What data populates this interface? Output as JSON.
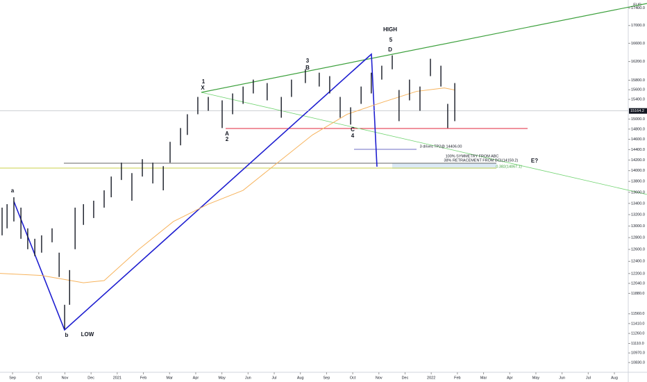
{
  "chart_data": {
    "type": "ohlc",
    "currency": "EUR",
    "log_scale": true,
    "color": "#131722",
    "x": [
      -0.4,
      -0.21,
      0.05,
      0.32,
      0.58,
      0.85,
      1.11,
      1.51,
      1.78,
      1.99,
      2.18,
      2.39,
      2.71,
      3.1,
      3.5,
      3.77,
      4.16,
      4.56,
      4.96,
      5.36,
      5.76,
      6.02,
      6.42,
      6.68,
      7.08,
      7.48,
      8.01,
      8.41,
      8.81,
      9.2,
      9.73,
      10.27,
      10.66,
      11.19,
      11.72,
      12.12,
      12.52,
      12.92,
      13.32,
      13.71,
      14.11,
      14.51,
      14.77,
      15.17,
      15.57,
      15.97,
      16.37,
      16.63,
      16.9
    ],
    "highs": [
      13324,
      13386,
      13510,
      13324,
      12960,
      12780,
      12839,
      12960,
      12545,
      11700,
      12256,
      13324,
      13386,
      13448,
      13636,
      13890,
      14150,
      13954,
      14216,
      14150,
      14084,
      14550,
      14821,
      15097,
      15451,
      15451,
      15380,
      15523,
      15667,
      15813,
      15740,
      15451,
      15813,
      16033,
      15960,
      15887,
      15451,
      15238,
      15667,
      15960,
      16110,
      16335,
      15595,
      15813,
      15667,
      16260,
      16110,
      15308,
      15740
    ],
    "lows": [
      12839,
      12960,
      13080,
      12780,
      12603,
      12487,
      12545,
      12720,
      12144,
      11330,
      11700,
      12603,
      13020,
      13140,
      13324,
      13510,
      13826,
      13448,
      13890,
      13762,
      13636,
      14150,
      14482,
      14685,
      15097,
      15168,
      14821,
      15097,
      15308,
      15523,
      15380,
      15027,
      15451,
      15740,
      15667,
      15523,
      15027,
      14890,
      15308,
      15523,
      15813,
      16033,
      14958,
      15380,
      15168,
      15887,
      15667,
      14821,
      14958
    ],
    "ma_line": {
      "color": "#f7b35c",
      "x": [
        -0.48,
        1.11,
        2.71,
        3.5,
        4.83,
        6.15,
        7.48,
        8.81,
        10.13,
        11.46,
        12.79,
        14.11,
        15.44,
        16.5,
        16.9
      ],
      "values": [
        12202,
        12168,
        12050,
        12085,
        12603,
        13080,
        13386,
        13636,
        14150,
        14685,
        15097,
        15336,
        15566,
        15638,
        15595
      ]
    },
    "xlim": [
      -0.48,
      23.53
    ],
    "ylim": [
      10690,
      17590
    ],
    "xticks": [
      {
        "value": 0,
        "label": "Sep"
      },
      {
        "value": 1,
        "label": "Oct"
      },
      {
        "value": 2,
        "label": "Nov"
      },
      {
        "value": 3,
        "label": "Dec"
      },
      {
        "value": 4,
        "label": "2021"
      },
      {
        "value": 5,
        "label": "Feb"
      },
      {
        "value": 6,
        "label": "Mar"
      },
      {
        "value": 7,
        "label": "Apr"
      },
      {
        "value": 8,
        "label": "May"
      },
      {
        "value": 9,
        "label": "Jun"
      },
      {
        "value": 10,
        "label": "Jul"
      },
      {
        "value": 11,
        "label": "Aug"
      },
      {
        "value": 12,
        "label": "Sep"
      },
      {
        "value": 13,
        "label": "Oct"
      },
      {
        "value": 14,
        "label": "Nov"
      },
      {
        "value": 15,
        "label": "Dec"
      },
      {
        "value": 16,
        "label": "2022"
      },
      {
        "value": 17,
        "label": "Feb"
      },
      {
        "value": 18,
        "label": "Mar"
      },
      {
        "value": 19,
        "label": "Apr"
      },
      {
        "value": 20,
        "label": "May"
      },
      {
        "value": 21,
        "label": "Jun"
      },
      {
        "value": 22,
        "label": "Jul"
      },
      {
        "value": 23,
        "label": "Aug"
      }
    ],
    "yticks": [
      {
        "value": 17400,
        "label": "17400.0"
      },
      {
        "value": 17000,
        "label": "17000.0"
      },
      {
        "value": 16600,
        "label": "16600.0"
      },
      {
        "value": 16200,
        "label": "16200.0"
      },
      {
        "value": 15800,
        "label": "15800.0"
      },
      {
        "value": 15600,
        "label": "15600.0"
      },
      {
        "value": 15400,
        "label": "15400.0"
      },
      {
        "value": 15000,
        "label": "15000.0"
      },
      {
        "value": 14800,
        "label": "14800.0"
      },
      {
        "value": 14600,
        "label": "14600.0"
      },
      {
        "value": 14400,
        "label": "14400.0"
      },
      {
        "value": 14200,
        "label": "14200.0"
      },
      {
        "value": 14000,
        "label": "14000.0"
      },
      {
        "value": 13800,
        "label": "13800.0"
      },
      {
        "value": 13600,
        "label": "13600.0"
      },
      {
        "value": 13400,
        "label": "13400.0"
      },
      {
        "value": 13200,
        "label": "13200.0"
      },
      {
        "value": 13000,
        "label": "13000.0"
      },
      {
        "value": 12800,
        "label": "12800.0"
      },
      {
        "value": 12600,
        "label": "12600.0"
      },
      {
        "value": 12400,
        "label": "12400.0"
      },
      {
        "value": 12200,
        "label": "12200.0"
      },
      {
        "value": 12040,
        "label": "12040.0"
      },
      {
        "value": 11880,
        "label": "11880.0"
      },
      {
        "value": 11560,
        "label": "11560.0"
      },
      {
        "value": 11410,
        "label": "11410.0"
      },
      {
        "value": 11260,
        "label": "11260.0"
      },
      {
        "value": 11110,
        "label": "11110.0"
      },
      {
        "value": 10970,
        "label": "10970.0"
      },
      {
        "value": 10830,
        "label": "10830.0"
      }
    ],
    "last_price": {
      "value": 15164.2,
      "label": "15164.2"
    },
    "annotations": [
      "a",
      "b",
      "LOW",
      "1",
      "X",
      "A",
      "2",
      "3",
      "B",
      "HIGH",
      "5",
      "D",
      "C",
      "4",
      "E?",
      "3 drives TP2@ 14406.00",
      "100% SYMMETRY FROM ABC",
      "38% RETRACEMENT FROM BC",
      "1(14159.2)",
      "0.382(14067.1)"
    ]
  }
}
